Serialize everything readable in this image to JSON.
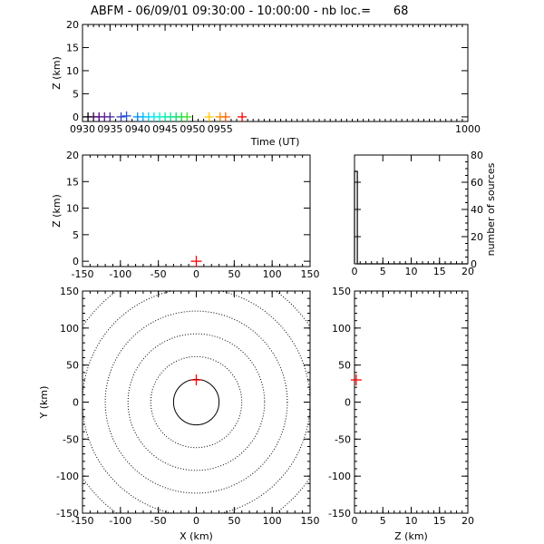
{
  "title": "ABFM - 06/09/01 09:30:00 - 10:00:00 - nb loc.=      68",
  "chart_data": [
    {
      "type": "scatter",
      "panel": "time-height",
      "xlabel": "Time (UT)",
      "ylabel": "Z (km)",
      "xlim": [
        930,
        1000
      ],
      "ylim": [
        -1,
        20
      ],
      "xticks": [
        "0930",
        "0935",
        "0940",
        "0945",
        "0950",
        "0955",
        "1000"
      ],
      "yticks": [
        "0",
        "5",
        "10",
        "15",
        "20"
      ],
      "points": [
        {
          "x": 931,
          "y": 0,
          "color": "#000000"
        },
        {
          "x": 932,
          "y": 0,
          "color": "#3a0044"
        },
        {
          "x": 933,
          "y": 0,
          "color": "#4b0082"
        },
        {
          "x": 934,
          "y": 0,
          "color": "#5a1a90"
        },
        {
          "x": 935,
          "y": 0,
          "color": "#4a2aa0"
        },
        {
          "x": 937,
          "y": 0,
          "color": "#3040c0"
        },
        {
          "x": 938,
          "y": 0.2,
          "color": "#1e50e0"
        },
        {
          "x": 940,
          "y": 0,
          "color": "#0090ff"
        },
        {
          "x": 941,
          "y": 0,
          "color": "#00b0ff"
        },
        {
          "x": 942,
          "y": 0,
          "color": "#00d0ff"
        },
        {
          "x": 943,
          "y": 0,
          "color": "#00e5f0"
        },
        {
          "x": 944,
          "y": 0,
          "color": "#00f0d0"
        },
        {
          "x": 945,
          "y": 0,
          "color": "#00f0b0"
        },
        {
          "x": 946,
          "y": 0,
          "color": "#00e890"
        },
        {
          "x": 947,
          "y": 0,
          "color": "#00e070"
        },
        {
          "x": 948,
          "y": 0,
          "color": "#10e040"
        },
        {
          "x": 949,
          "y": 0,
          "color": "#40e020"
        },
        {
          "x": 953,
          "y": 0,
          "color": "#ffc800"
        },
        {
          "x": 955,
          "y": 0,
          "color": "#ff9000"
        },
        {
          "x": 956,
          "y": 0,
          "color": "#ff6000"
        },
        {
          "x": 959,
          "y": 0,
          "color": "#ff0000"
        }
      ]
    },
    {
      "type": "scatter",
      "panel": "x-height",
      "ylabel": "Z (km)",
      "xlim": [
        -150,
        150
      ],
      "ylim": [
        -1,
        20
      ],
      "xticks": [
        "-150",
        "-100",
        "-50",
        "0",
        "50",
        "100",
        "150"
      ],
      "yticks": [
        "0",
        "5",
        "10",
        "15",
        "20"
      ],
      "points": [
        {
          "x": 0,
          "y": 0,
          "color": "#ff0000"
        }
      ]
    },
    {
      "type": "bar",
      "panel": "height-histogram",
      "ylabel": "number of sources",
      "xlim": [
        0,
        20
      ],
      "ylim": [
        0,
        80
      ],
      "xticks": [
        "0",
        "5",
        "10",
        "15",
        "20"
      ],
      "yticks": [
        "0",
        "20",
        "40",
        "60",
        "80"
      ],
      "bins": [
        {
          "x0": 0,
          "x1": 0.5,
          "value": 68
        },
        {
          "x0": 0.5,
          "x1": 20,
          "value": 0
        }
      ]
    },
    {
      "type": "scatter",
      "panel": "plan-view",
      "xlabel": "X (km)",
      "ylabel": "Y (km)",
      "xlim": [
        -150,
        150
      ],
      "ylim": [
        -150,
        150
      ],
      "xticks": [
        "-150",
        "-100",
        "-50",
        "0",
        "50",
        "100",
        "150"
      ],
      "yticks": [
        "-150",
        "-100",
        "-50",
        "0",
        "50",
        "100",
        "150"
      ],
      "range_rings_km": [
        30,
        60,
        90,
        120,
        150,
        180
      ],
      "points": [
        {
          "x": 0,
          "y": 30,
          "color": "#ff0000"
        }
      ]
    },
    {
      "type": "scatter",
      "panel": "height-y",
      "xlabel": "Z (km)",
      "xlim": [
        0,
        20
      ],
      "ylim": [
        -150,
        150
      ],
      "xticks": [
        "0",
        "5",
        "10",
        "15",
        "20"
      ],
      "yticks": [
        "-150",
        "-100",
        "-50",
        "0",
        "50",
        "100",
        "150"
      ],
      "points": [
        {
          "x": 0.3,
          "y": 30,
          "color": "#ff0000"
        }
      ]
    }
  ]
}
